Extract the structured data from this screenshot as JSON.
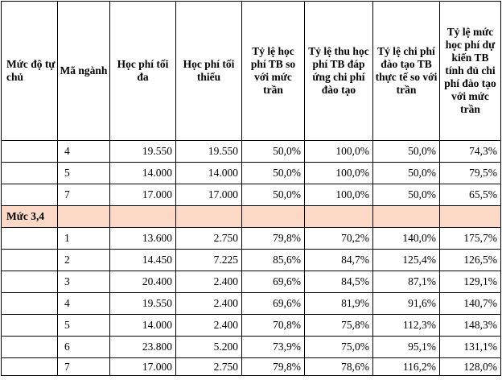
{
  "table": {
    "columns": [
      "Mức độ tự chủ",
      "Mã ngành",
      "Học phí tối đa",
      "Học phí tối thiểu",
      "Tỷ lệ học phí TB so với mức trần",
      "Tỷ lệ thu học phí TB đáp ứng chi phí đào tạo",
      "Tỷ lệ chi phí đào tạo TB thực tế so với trần",
      "Tỷ lệ mức học phí dự kiến TB tính đủ chi phí đào tạo với mức trần"
    ],
    "rows_top": [
      [
        "",
        "4",
        "19.550",
        "19.550",
        "50,0%",
        "100,0%",
        "50,0%",
        "74,3%"
      ],
      [
        "",
        "5",
        "14.000",
        "14.000",
        "50,0%",
        "100,0%",
        "50,0%",
        "79,5%"
      ],
      [
        "",
        "7",
        "17.000",
        "17.000",
        "50,0%",
        "100,0%",
        "50,0%",
        "65,5%"
      ]
    ],
    "group_label": "Mức 3,4",
    "rows_bottom": [
      [
        "",
        "1",
        "13.600",
        "2.750",
        "79,8%",
        "70,2%",
        "140,0%",
        "175,7%"
      ],
      [
        "",
        "2",
        "14.450",
        "7.225",
        "85,6%",
        "84,7%",
        "125,4%",
        "126,5%"
      ],
      [
        "",
        "3",
        "20.400",
        "2.400",
        "69,6%",
        "84,5%",
        "87,1%",
        "129,1%"
      ],
      [
        "",
        "4",
        "19.550",
        "2.400",
        "69,6%",
        "81,9%",
        "91,6%",
        "140,7%"
      ],
      [
        "",
        "5",
        "14.000",
        "2.400",
        "70,8%",
        "75,8%",
        "112,3%",
        "148,3%"
      ],
      [
        "",
        "6",
        "23.800",
        "5.200",
        "73,9%",
        "75,0%",
        "95,1%",
        "131,1%"
      ],
      [
        "",
        "7",
        "17.000",
        "2.750",
        "79,8%",
        "78,6%",
        "116,2%",
        "128,0%"
      ]
    ]
  },
  "colors": {
    "group_row_bg": "#fbd9c6",
    "border": "#000000"
  }
}
